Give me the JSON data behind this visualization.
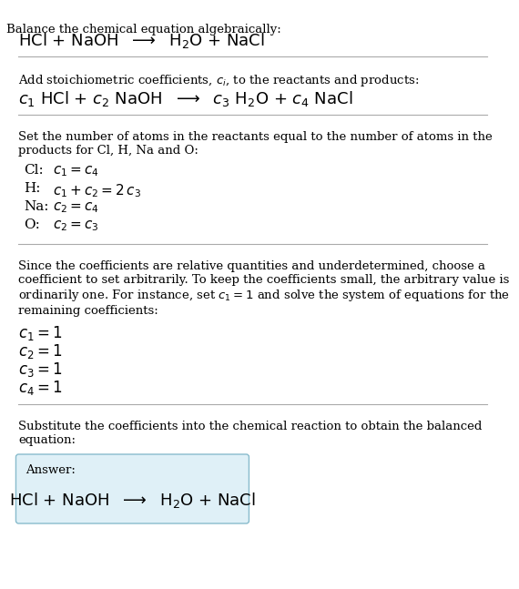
{
  "bg_color": "#ffffff",
  "text_color": "#000000",
  "separator_color": "#aaaaaa",
  "answer_box_facecolor": "#dff0f7",
  "answer_box_edgecolor": "#88bbcc",
  "sections": [
    {
      "type": "text_then_math",
      "header": "Balance the chemical equation algebraically:",
      "eq": "HCl + NaOH  $\\longrightarrow$  H$_2$O + NaCl",
      "header_size": 9.5,
      "eq_size": 13
    },
    {
      "type": "text_then_math",
      "header": "Add stoichiometric coefficients, $c_i$, to the reactants and products:",
      "eq": "$c_1$ HCl + $c_2$ NaOH  $\\longrightarrow$  $c_3$ H$_2$O + $c_4$ NaCl",
      "header_size": 9.5,
      "eq_size": 13
    },
    {
      "type": "text_then_indented_math_list",
      "header": "Set the number of atoms in the reactants equal to the number of atoms in the\nproducts for Cl, H, Na and O:",
      "header_size": 9.5,
      "lines": [
        [
          "Cl:",
          "$c_1 = c_4$"
        ],
        [
          "H:",
          "$c_1 + c_2 = 2\\,c_3$"
        ],
        [
          "Na:",
          "$c_2 = c_4$"
        ],
        [
          "O:",
          "$c_2 = c_3$"
        ]
      ],
      "line_size": 11
    },
    {
      "type": "text_then_math_list",
      "header": "Since the coefficients are relative quantities and underdetermined, choose a\ncoefficient to set arbitrarily. To keep the coefficients small, the arbitrary value is\nordinarily one. For instance, set $c_1 = 1$ and solve the system of equations for the\nremaining coefficients:",
      "header_size": 9.5,
      "lines": [
        "$c_1 = 1$",
        "$c_2 = 1$",
        "$c_3 = 1$",
        "$c_4 = 1$"
      ],
      "line_size": 12
    },
    {
      "type": "answer",
      "header": "Substitute the coefficients into the chemical reaction to obtain the balanced\nequation:",
      "header_size": 9.5,
      "answer_label": "Answer:",
      "answer_eq": "HCl + NaOH  $\\longrightarrow$  H$_2$O + NaCl",
      "answer_label_size": 9.5,
      "answer_eq_size": 13
    }
  ]
}
